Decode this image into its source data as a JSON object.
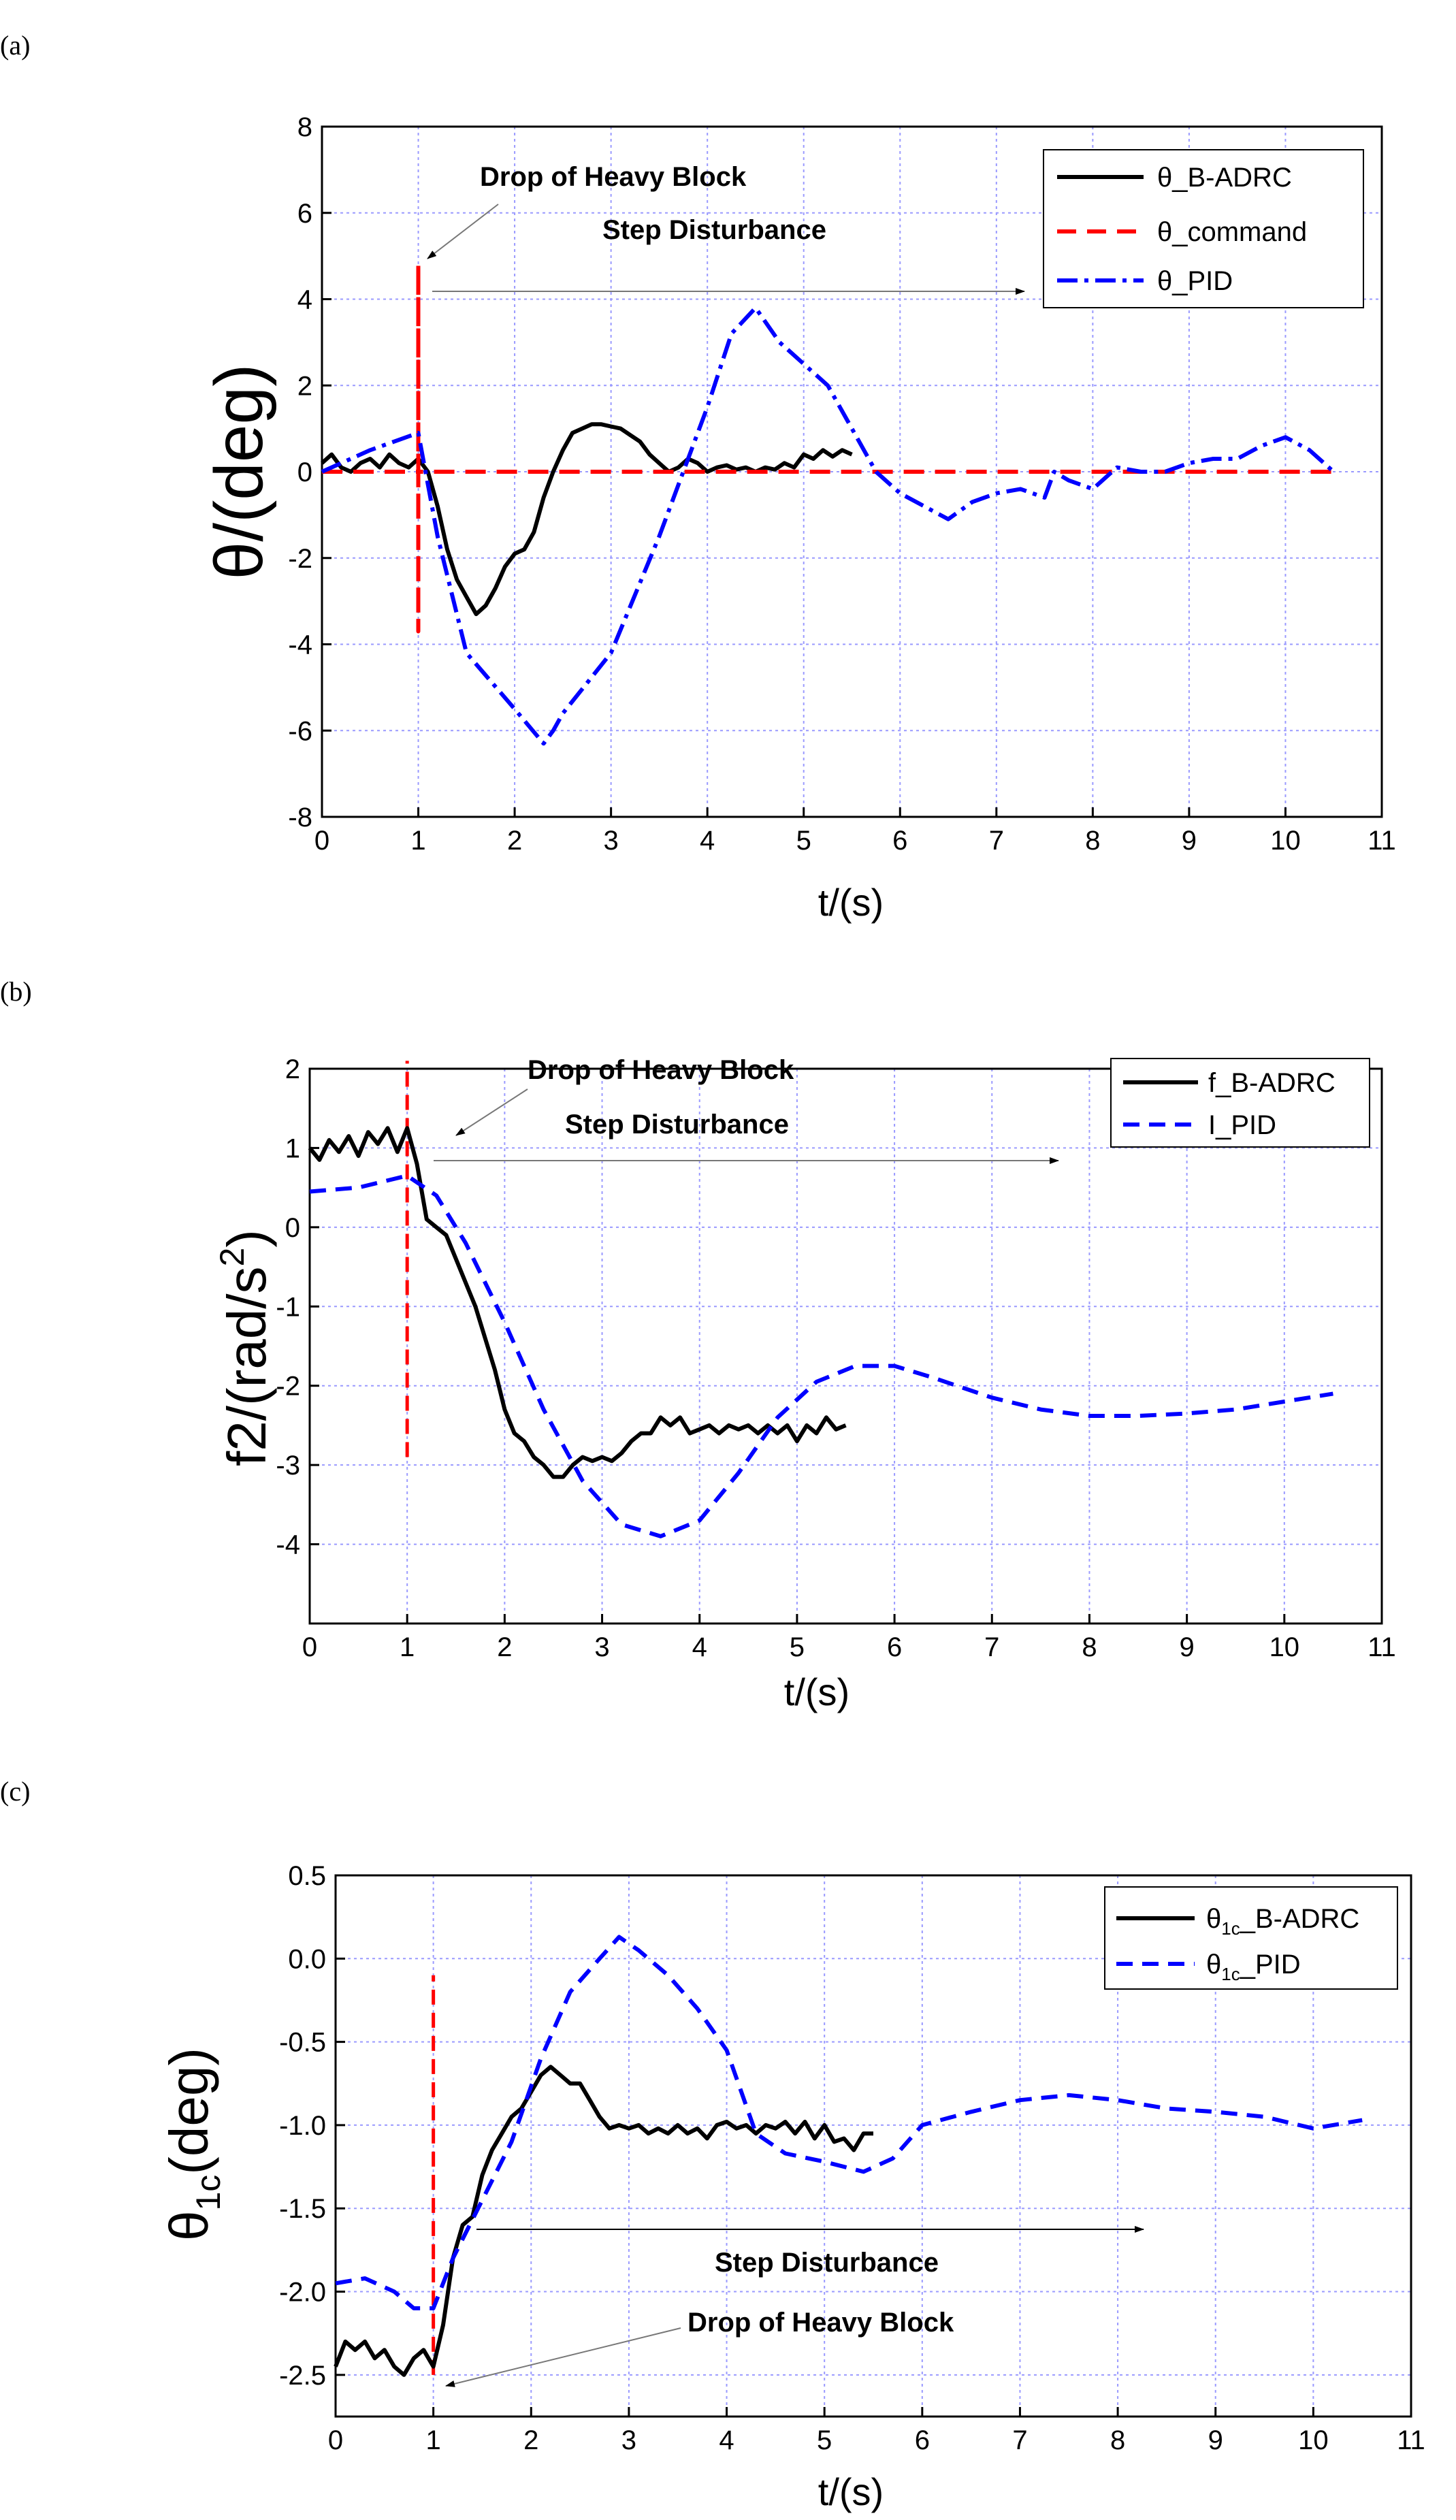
{
  "chart_data": [
    {
      "panel": "(a)",
      "type": "line",
      "ylabel": "θ/(deg)",
      "xlabel": "t/(s)",
      "xlim": [
        0,
        11
      ],
      "ylim": [
        -8,
        8
      ],
      "xticks": [
        0,
        1,
        2,
        3,
        4,
        5,
        6,
        7,
        8,
        9,
        10,
        11
      ],
      "yticks": [
        -8,
        -6,
        -4,
        -2,
        0,
        2,
        4,
        6,
        8
      ],
      "grid": true,
      "legend_position": "top-right",
      "annotations": [
        "Drop of Heavy Block",
        "Step Disturbance"
      ],
      "series": [
        {
          "name": "θ_B-ADRC",
          "color": "#000000",
          "style": "solid",
          "x": [
            0,
            0.1,
            0.2,
            0.3,
            0.4,
            0.5,
            0.6,
            0.7,
            0.8,
            0.9,
            1.0,
            1.1,
            1.2,
            1.3,
            1.4,
            1.5,
            1.6,
            1.7,
            1.8,
            1.9,
            2.0,
            2.1,
            2.2,
            2.3,
            2.4,
            2.5,
            2.6,
            2.7,
            2.8,
            2.9,
            3.0,
            3.1,
            3.2,
            3.3,
            3.4,
            3.5,
            3.6,
            3.7,
            3.8,
            3.9,
            4.0,
            4.1,
            4.2,
            4.3,
            4.4,
            4.5,
            4.6,
            4.7,
            4.8,
            4.9,
            5.0,
            5.1,
            5.2,
            5.3,
            5.4,
            5.5
          ],
          "y": [
            0.2,
            0.4,
            0.1,
            0.0,
            0.2,
            0.3,
            0.1,
            0.4,
            0.2,
            0.1,
            0.3,
            0.0,
            -0.8,
            -1.8,
            -2.5,
            -2.9,
            -3.3,
            -3.1,
            -2.7,
            -2.2,
            -1.9,
            -1.8,
            -1.4,
            -0.6,
            0.0,
            0.5,
            0.9,
            1.0,
            1.1,
            1.1,
            1.05,
            1.0,
            0.85,
            0.7,
            0.4,
            0.2,
            0.0,
            0.1,
            0.3,
            0.2,
            0.0,
            0.1,
            0.15,
            0.05,
            0.1,
            0.0,
            0.1,
            0.05,
            0.2,
            0.1,
            0.4,
            0.3,
            0.5,
            0.35,
            0.5,
            0.4
          ]
        },
        {
          "name": "θ_command",
          "color": "#ff0000",
          "style": "dashed",
          "x": [
            0,
            1.0,
            1.0,
            1.0,
            1.0,
            10.5
          ],
          "y": [
            0,
            0,
            4.8,
            -3.7,
            0,
            0
          ]
        },
        {
          "name": "θ_PID",
          "color": "#0000ff",
          "style": "dashdot",
          "x": [
            0,
            0.5,
            1.0,
            1.2,
            1.5,
            2.0,
            2.3,
            2.4,
            2.5,
            3.0,
            3.5,
            4.0,
            4.25,
            4.5,
            4.75,
            5.0,
            5.25,
            5.5,
            5.75,
            6.0,
            6.25,
            6.5,
            6.75,
            7.0,
            7.25,
            7.5,
            7.6,
            7.75,
            8.0,
            8.25,
            8.5,
            8.75,
            9.0,
            9.25,
            9.5,
            9.75,
            10.0,
            10.25,
            10.5
          ],
          "y": [
            0,
            0.5,
            0.9,
            -1.5,
            -4.2,
            -5.5,
            -6.3,
            -6.0,
            -5.6,
            -4.2,
            -1.5,
            1.5,
            3.2,
            3.8,
            3.0,
            2.5,
            2.0,
            1.0,
            0.0,
            -0.5,
            -0.8,
            -1.1,
            -0.7,
            -0.5,
            -0.4,
            -0.6,
            0.0,
            -0.2,
            -0.4,
            0.1,
            0.0,
            0.0,
            0.2,
            0.3,
            0.3,
            0.6,
            0.8,
            0.5,
            0.0
          ]
        }
      ]
    },
    {
      "panel": "(b)",
      "type": "line",
      "ylabel_main": "f2/(rad/s",
      "ylabel_sup": "2",
      "ylabel_end": ")",
      "xlabel": "t/(s)",
      "xlim": [
        0,
        11
      ],
      "ylim": [
        -5,
        2
      ],
      "xticks": [
        0,
        1,
        2,
        3,
        4,
        5,
        6,
        7,
        8,
        9,
        10,
        11
      ],
      "yticks": [
        -4,
        -3,
        -2,
        -1,
        0,
        1,
        2
      ],
      "grid": true,
      "legend_position": "top-right",
      "annotations": [
        "Drop of Heavy Block",
        "Step Disturbance"
      ],
      "disturbance_line": {
        "x": 1.0,
        "y_range": [
          -2.9,
          2.1
        ]
      },
      "series": [
        {
          "name": "f_B-ADRC",
          "color": "#000000",
          "style": "solid",
          "x": [
            0,
            0.1,
            0.2,
            0.3,
            0.4,
            0.5,
            0.6,
            0.7,
            0.8,
            0.9,
            1.0,
            1.1,
            1.2,
            1.3,
            1.4,
            1.5,
            1.6,
            1.7,
            1.8,
            1.9,
            2.0,
            2.1,
            2.2,
            2.3,
            2.4,
            2.5,
            2.6,
            2.7,
            2.8,
            2.9,
            3.0,
            3.1,
            3.2,
            3.3,
            3.4,
            3.5,
            3.6,
            3.7,
            3.8,
            3.9,
            4.0,
            4.1,
            4.2,
            4.3,
            4.4,
            4.5,
            4.6,
            4.7,
            4.8,
            4.9,
            5.0,
            5.1,
            5.2,
            5.3,
            5.4,
            5.5
          ],
          "y": [
            1.0,
            0.85,
            1.1,
            0.95,
            1.15,
            0.9,
            1.2,
            1.05,
            1.25,
            0.95,
            1.25,
            0.8,
            0.1,
            0.0,
            -0.1,
            -0.4,
            -0.7,
            -1.0,
            -1.4,
            -1.8,
            -2.3,
            -2.6,
            -2.7,
            -2.9,
            -3.0,
            -3.15,
            -3.15,
            -3.0,
            -2.9,
            -2.95,
            -2.9,
            -2.95,
            -2.85,
            -2.7,
            -2.6,
            -2.6,
            -2.4,
            -2.5,
            -2.4,
            -2.6,
            -2.55,
            -2.5,
            -2.6,
            -2.5,
            -2.55,
            -2.5,
            -2.6,
            -2.5,
            -2.6,
            -2.5,
            -2.7,
            -2.5,
            -2.6,
            -2.4,
            -2.55,
            -2.5
          ]
        },
        {
          "name": "I_PID",
          "color": "#0000ff",
          "style": "dashed",
          "x": [
            0,
            0.5,
            1.0,
            1.3,
            1.6,
            2.0,
            2.4,
            2.8,
            3.2,
            3.6,
            4.0,
            4.4,
            4.8,
            5.2,
            5.6,
            6.0,
            6.4,
            7.0,
            7.5,
            8.0,
            8.5,
            9.0,
            9.5,
            10.0,
            10.5
          ],
          "y": [
            0.45,
            0.5,
            0.65,
            0.4,
            -0.2,
            -1.2,
            -2.3,
            -3.2,
            -3.75,
            -3.9,
            -3.7,
            -3.1,
            -2.4,
            -1.95,
            -1.75,
            -1.75,
            -1.9,
            -2.15,
            -2.3,
            -2.38,
            -2.38,
            -2.35,
            -2.3,
            -2.2,
            -2.1
          ]
        }
      ]
    },
    {
      "panel": "(c)",
      "type": "line",
      "ylabel_main": "θ",
      "ylabel_sub": "1c",
      "ylabel_end": "(deg)",
      "xlabel": "t/(s)",
      "xlim": [
        0,
        11
      ],
      "ylim": [
        -2.75,
        0.5
      ],
      "xticks": [
        0,
        1,
        2,
        3,
        4,
        5,
        6,
        7,
        8,
        9,
        10,
        11
      ],
      "yticks": [
        -2.5,
        -2.0,
        -1.5,
        -1.0,
        -0.5,
        0.0,
        0.5
      ],
      "ytick_labels": [
        "-2.5",
        "-2.0",
        "-1.5",
        "-1.0",
        "-0.5",
        "0.0",
        "0.5"
      ],
      "grid": true,
      "legend_position": "top-right",
      "annotations": [
        "Step Disturbance",
        "Drop of Heavy Block"
      ],
      "disturbance_line": {
        "x": 1.0,
        "y_range": [
          -2.5,
          -0.1
        ]
      },
      "series": [
        {
          "name_main": "θ",
          "name_sub": "1c",
          "name_end": "_B-ADRC",
          "color": "#000000",
          "style": "solid",
          "x": [
            0,
            0.1,
            0.2,
            0.3,
            0.4,
            0.5,
            0.6,
            0.7,
            0.8,
            0.9,
            1.0,
            1.1,
            1.2,
            1.3,
            1.4,
            1.5,
            1.6,
            1.7,
            1.8,
            1.9,
            2.0,
            2.1,
            2.2,
            2.3,
            2.4,
            2.5,
            2.6,
            2.7,
            2.8,
            2.9,
            3.0,
            3.1,
            3.2,
            3.3,
            3.4,
            3.5,
            3.6,
            3.7,
            3.8,
            3.9,
            4.0,
            4.1,
            4.2,
            4.3,
            4.4,
            4.5,
            4.6,
            4.7,
            4.8,
            4.9,
            5.0,
            5.1,
            5.2,
            5.3,
            5.4,
            5.5
          ],
          "y": [
            -2.45,
            -2.3,
            -2.35,
            -2.3,
            -2.4,
            -2.35,
            -2.45,
            -2.5,
            -2.4,
            -2.35,
            -2.45,
            -2.2,
            -1.8,
            -1.6,
            -1.55,
            -1.3,
            -1.15,
            -1.05,
            -0.95,
            -0.9,
            -0.8,
            -0.7,
            -0.65,
            -0.7,
            -0.75,
            -0.75,
            -0.85,
            -0.95,
            -1.02,
            -1.0,
            -1.02,
            -1.0,
            -1.05,
            -1.02,
            -1.05,
            -1.0,
            -1.05,
            -1.02,
            -1.08,
            -1.0,
            -0.98,
            -1.02,
            -1.0,
            -1.05,
            -1.0,
            -1.02,
            -0.98,
            -1.05,
            -0.98,
            -1.08,
            -1.0,
            -1.1,
            -1.08,
            -1.15,
            -1.05,
            -1.05
          ]
        },
        {
          "name_main": "θ",
          "name_sub": "1c",
          "name_end": "_PID",
          "color": "#0000ff",
          "style": "dashed",
          "x": [
            0,
            0.3,
            0.6,
            0.8,
            1.0,
            1.2,
            1.5,
            1.8,
            2.1,
            2.4,
            2.7,
            2.9,
            3.1,
            3.4,
            3.7,
            4.0,
            4.3,
            4.6,
            5.0,
            5.4,
            5.7,
            6.0,
            6.5,
            7.0,
            7.5,
            8.0,
            8.5,
            9.0,
            9.5,
            10.0,
            10.5
          ],
          "y": [
            -1.95,
            -1.92,
            -2.0,
            -2.1,
            -2.1,
            -1.8,
            -1.45,
            -1.1,
            -0.6,
            -0.2,
            0.0,
            0.13,
            0.05,
            -0.1,
            -0.3,
            -0.55,
            -1.05,
            -1.17,
            -1.22,
            -1.28,
            -1.2,
            -1.0,
            -0.92,
            -0.85,
            -0.82,
            -0.85,
            -0.9,
            -0.92,
            -0.95,
            -1.02,
            -0.97
          ]
        }
      ]
    }
  ]
}
